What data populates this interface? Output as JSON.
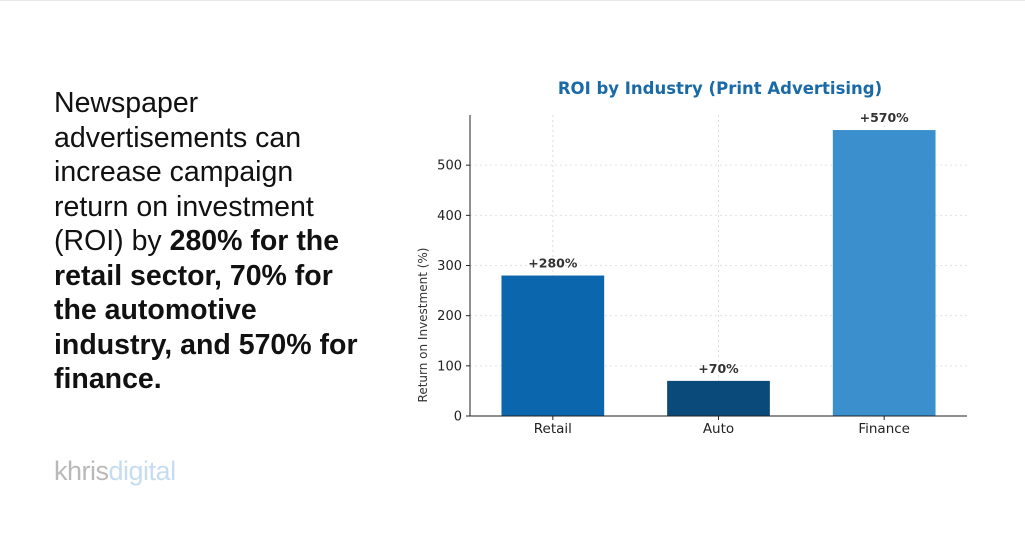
{
  "headline": {
    "intro": "Newspaper advertisements can increase campaign return on investment (ROI) by ",
    "emphasis": "280% for the retail sector, 70% for the automotive industry, and 570% for finance."
  },
  "logo": {
    "part1": "khris",
    "part2": "digital"
  },
  "chart_data": {
    "type": "bar",
    "title": "ROI by Industry (Print Advertising)",
    "xlabel": "",
    "ylabel": "Return on Investment (%)",
    "categories": [
      "Retail",
      "Auto",
      "Finance"
    ],
    "values": [
      280,
      70,
      570
    ],
    "data_labels": [
      "+280%",
      "+70%",
      "+570%"
    ],
    "colors": [
      "#0b66ad",
      "#0a4a7a",
      "#3a8fcc"
    ],
    "ylim": [
      0,
      600
    ],
    "yticks": [
      0,
      100,
      200,
      300,
      400,
      500
    ],
    "grid": true,
    "legend": "none",
    "title_color": "#1a6aa8"
  }
}
